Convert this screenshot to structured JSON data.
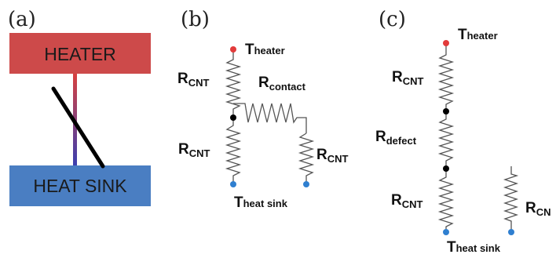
{
  "panels": {
    "a": "(a)",
    "b": "(b)",
    "c": "(c)"
  },
  "panel_a": {
    "heater_label": "HEATER",
    "heatsink_label": "HEAT SINK",
    "colors": {
      "heater": "#cd4a4a",
      "heatsink": "#4a7ec2",
      "wire_top": "#d8403f",
      "wire_bottom": "#3b3fb0",
      "cnt": "#000000"
    }
  },
  "panel_b": {
    "t_heater": {
      "main": "T",
      "sub": "heater"
    },
    "r_cnt_top": {
      "main": "R",
      "sub": "CNT"
    },
    "r_contact": {
      "main": "R",
      "sub": "contact"
    },
    "r_cnt_bottom": {
      "main": "R",
      "sub": "CNT"
    },
    "r_cnt_right": {
      "main": "R",
      "sub": "CNT"
    },
    "t_heatsink": {
      "main": "T",
      "sub": "heat sink"
    }
  },
  "panel_c": {
    "t_heater": {
      "main": "T",
      "sub": "heater"
    },
    "r_cnt_top": {
      "main": "R",
      "sub": "CNT"
    },
    "r_defect": {
      "main": "R",
      "sub": "defect"
    },
    "r_cnt_bottom": {
      "main": "R",
      "sub": "CNT"
    },
    "r_cnt_right": {
      "main": "R",
      "sub": "CN"
    },
    "t_heatsink": {
      "main": "T",
      "sub": "heat sink"
    }
  },
  "node_colors": {
    "hot": "#e23b3b",
    "cold": "#2f7fd0",
    "junction": "#000000"
  }
}
